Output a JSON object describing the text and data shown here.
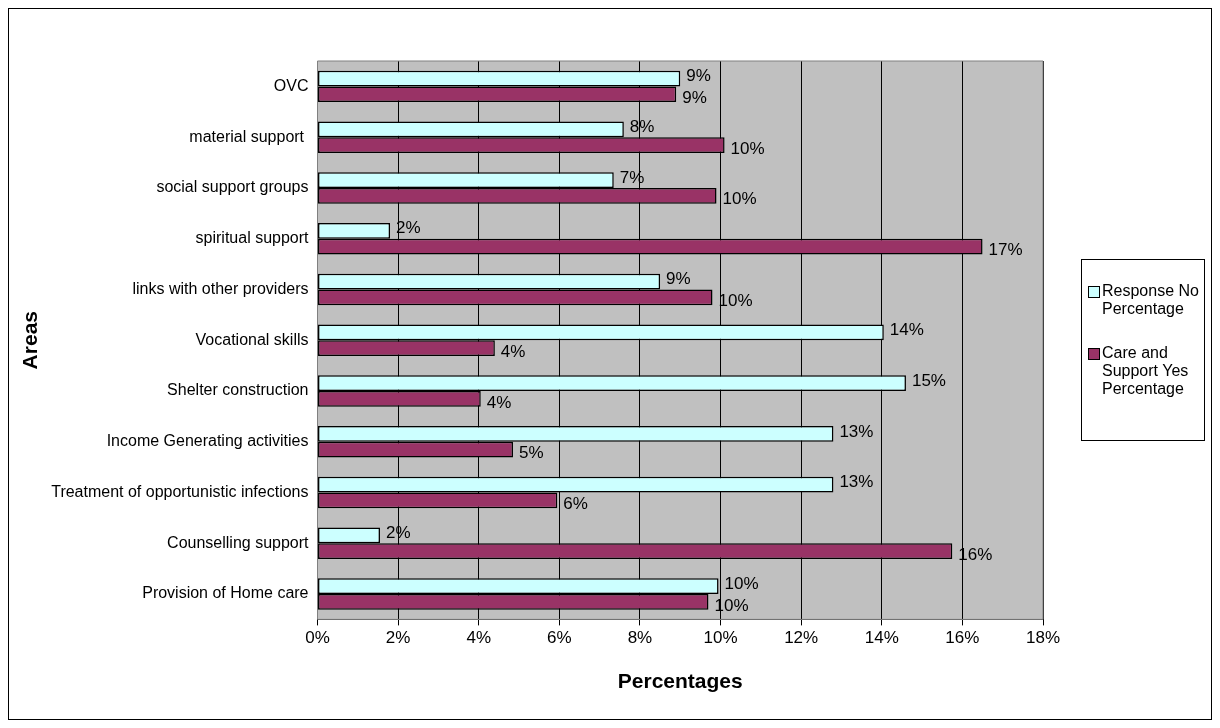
{
  "chart_data": {
    "type": "bar",
    "orientation": "horizontal",
    "xlabel": "Percentages",
    "ylabel": "Areas",
    "categories": [
      "OVC",
      "material support ",
      "social support groups",
      "spiritual support",
      "links with other providers",
      "Vocational skills",
      "Shelter construction",
      "Income Generating activities",
      "Treatment of opportunistic infections",
      "Counselling support",
      "Provision of Home care"
    ],
    "series": [
      {
        "name": "Response No Percentage",
        "color": "#ccffff",
        "values": [
          9.0,
          7.6,
          7.35,
          1.8,
          8.5,
          14.05,
          14.6,
          12.8,
          12.8,
          1.55,
          9.95
        ],
        "value_labels": [
          "9%",
          "8%",
          "7%",
          "2%",
          "9%",
          "14%",
          "15%",
          "13%",
          "13%",
          "2%",
          "10%"
        ]
      },
      {
        "name": "Care and Support Yes Percentage",
        "color": "#993366",
        "values": [
          8.9,
          10.1,
          9.9,
          16.5,
          9.8,
          4.4,
          4.05,
          4.85,
          5.95,
          15.75,
          9.7
        ],
        "value_labels": [
          "9%",
          "10%",
          "10%",
          "17%",
          "10%",
          "4%",
          "4%",
          "5%",
          "6%",
          "16%",
          "10%"
        ]
      }
    ],
    "xlim": [
      0,
      18
    ],
    "xticks": [
      {
        "value": 0,
        "label": "0%"
      },
      {
        "value": 2,
        "label": "2%"
      },
      {
        "value": 4,
        "label": "4%"
      },
      {
        "value": 6,
        "label": "6%"
      },
      {
        "value": 8,
        "label": "8%"
      },
      {
        "value": 10,
        "label": "10%"
      },
      {
        "value": 12,
        "label": "12%"
      },
      {
        "value": 14,
        "label": "14%"
      },
      {
        "value": 16,
        "label": "16%"
      },
      {
        "value": 18,
        "label": "18%"
      }
    ],
    "grid": "x",
    "legend": "right"
  }
}
